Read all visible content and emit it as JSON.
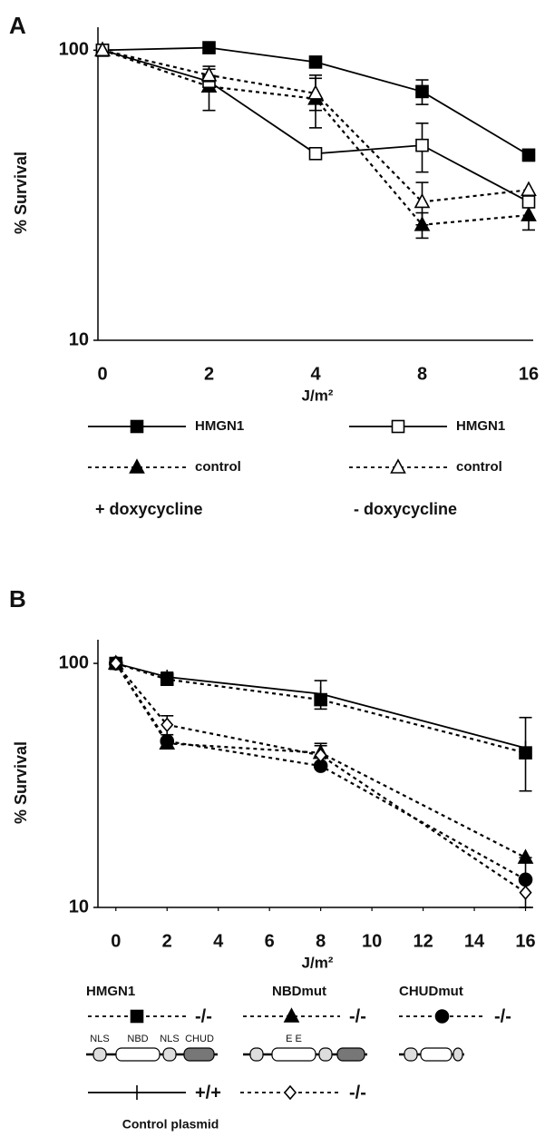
{
  "chart_data": [
    {
      "type": "line",
      "panel_label": "A",
      "ylabel": "% Survival",
      "xlabel": "J/m²",
      "categories": [
        "0",
        "2",
        "4",
        "8",
        "16"
      ],
      "log_y": true,
      "ylim": [
        10,
        120
      ],
      "yticks": [
        10,
        100
      ],
      "series": [
        {
          "name": "HMGN1",
          "color": "#000000",
          "marker": "square",
          "filled": true,
          "line_style": "solid",
          "values": [
            100,
            102,
            91,
            72,
            43.5
          ],
          "errors": [
            null,
            4,
            4,
            7,
            2
          ]
        },
        {
          "name": "control",
          "color": "#000000",
          "marker": "triangle",
          "filled": true,
          "line_style": "dashed",
          "values": [
            100,
            75,
            68,
            25,
            27
          ],
          "errors": [
            null,
            13,
            14,
            2.5,
            3
          ]
        },
        {
          "name": "HMGN1",
          "color": "#000000",
          "marker": "square",
          "filled": false,
          "line_style": "solid",
          "values": [
            100,
            78,
            44,
            47,
            30
          ],
          "errors": [
            null,
            null,
            null,
            9,
            null
          ]
        },
        {
          "name": "control",
          "color": "#000000",
          "marker": "triangle",
          "filled": false,
          "line_style": "dashed",
          "values": [
            100,
            82,
            71,
            30,
            33
          ],
          "errors": [
            null,
            4,
            9,
            5,
            null
          ]
        }
      ],
      "legend_captions": [
        "+ doxycycline",
        "- doxycycline"
      ]
    },
    {
      "type": "line",
      "panel_label": "B",
      "ylabel": "% Survival",
      "xlabel": "J/m²",
      "x": [
        0,
        2,
        8,
        16
      ],
      "xlim": [
        -0.7,
        16.3
      ],
      "xticks": [
        0,
        2,
        4,
        6,
        8,
        10,
        12,
        14,
        16
      ],
      "log_y": true,
      "ylim": [
        10,
        125
      ],
      "yticks": [
        10,
        100
      ],
      "series": [
        {
          "name": "-/-",
          "color": "#000000",
          "marker": "square",
          "filled": true,
          "line_style": "dashed",
          "values": [
            100,
            86,
            71,
            43
          ],
          "errors": [
            null,
            null,
            null,
            null
          ]
        },
        {
          "name": "-/-",
          "color": "#000000",
          "marker": "triangle",
          "filled": true,
          "line_style": "dashed",
          "values": [
            100,
            47,
            43,
            16
          ],
          "errors": [
            null,
            null,
            4,
            null
          ]
        },
        {
          "name": "-/-",
          "color": "#000000",
          "marker": "circle",
          "filled": true,
          "line_style": "dashed",
          "values": [
            100,
            48,
            38,
            13
          ],
          "errors": [
            null,
            null,
            null,
            3
          ]
        },
        {
          "name": "+/+",
          "color": "#000000",
          "marker": "cross",
          "filled": true,
          "line_style": "solid",
          "values": [
            100,
            88,
            75,
            45
          ],
          "errors": [
            null,
            4,
            10,
            15
          ]
        },
        {
          "name": "-/-",
          "color": "#000000",
          "marker": "diamond",
          "filled": false,
          "line_style": "dashed",
          "values": [
            100,
            56,
            42,
            11.5
          ],
          "errors": [
            null,
            5,
            4,
            null
          ]
        }
      ],
      "legend_headers": [
        "HMGN1",
        "NBDmut",
        "CHUDmut"
      ],
      "domain_labels": [
        "NLS",
        "NBD",
        "NLS",
        "CHUD"
      ],
      "mutation_label": "E E",
      "legend_caption": "Control plasmid"
    }
  ]
}
